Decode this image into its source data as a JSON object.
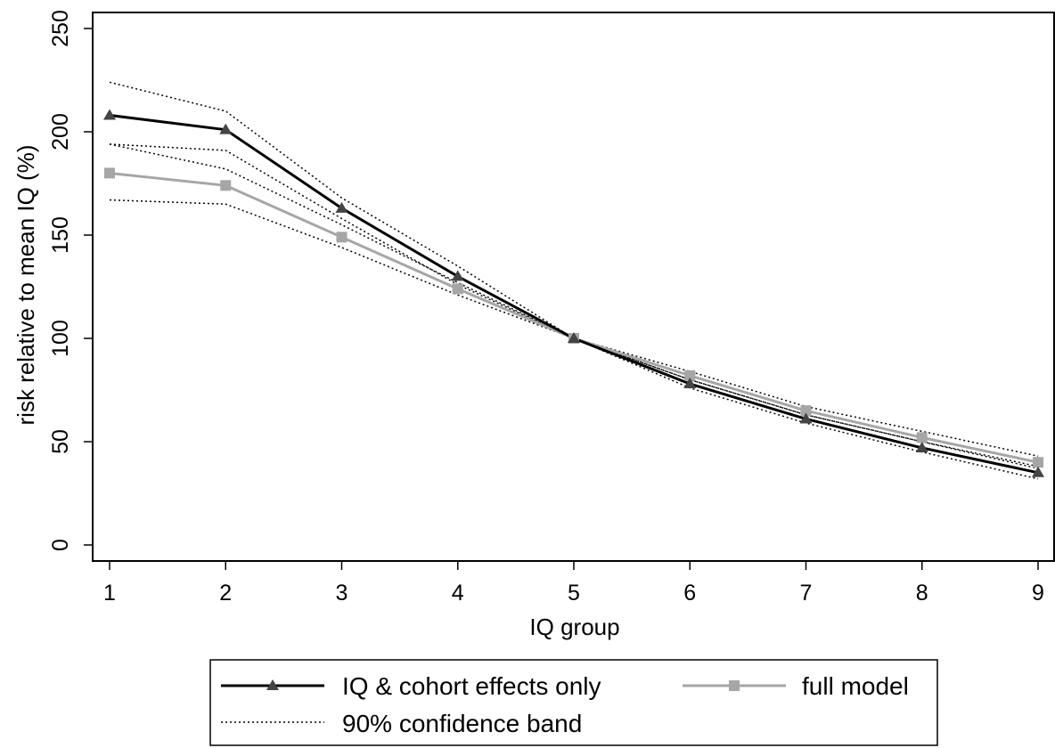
{
  "chart_data": {
    "type": "line",
    "title": "",
    "xlabel": "IQ group",
    "ylabel": "risk relative to mean IQ (%)",
    "x": [
      1,
      2,
      3,
      4,
      5,
      6,
      7,
      8,
      9
    ],
    "xlim": [
      1,
      9
    ],
    "ylim": [
      0,
      250
    ],
    "xticks": [
      "1",
      "2",
      "3",
      "4",
      "5",
      "6",
      "7",
      "8",
      "9"
    ],
    "yticks": [
      "0",
      "50",
      "100",
      "150",
      "200",
      "250"
    ],
    "grid": false,
    "legend_position": "bottom",
    "series": [
      {
        "name": "IQ & cohort effects only",
        "color": "#000000",
        "marker": "triangle",
        "values": [
          208,
          201,
          163,
          130,
          100,
          78,
          61,
          47,
          35
        ]
      },
      {
        "name": "full model",
        "color": "#a6a6a6",
        "marker": "square",
        "values": [
          180,
          174,
          149,
          124,
          100,
          82,
          65,
          52,
          40
        ]
      }
    ],
    "confidence_band": {
      "name": "90% confidence band",
      "color": "#000000",
      "style": "dotted",
      "bands": [
        {
          "lower": [
            194,
            191,
            158,
            126,
            100,
            76,
            59,
            45,
            32
          ],
          "upper": [
            224,
            210,
            168,
            135,
            100,
            80,
            63,
            50,
            38
          ]
        },
        {
          "lower": [
            167,
            165,
            144,
            121,
            100,
            80,
            63,
            50,
            37
          ],
          "upper": [
            194,
            182,
            155,
            127,
            100,
            84,
            67,
            55,
            43
          ]
        }
      ]
    }
  }
}
